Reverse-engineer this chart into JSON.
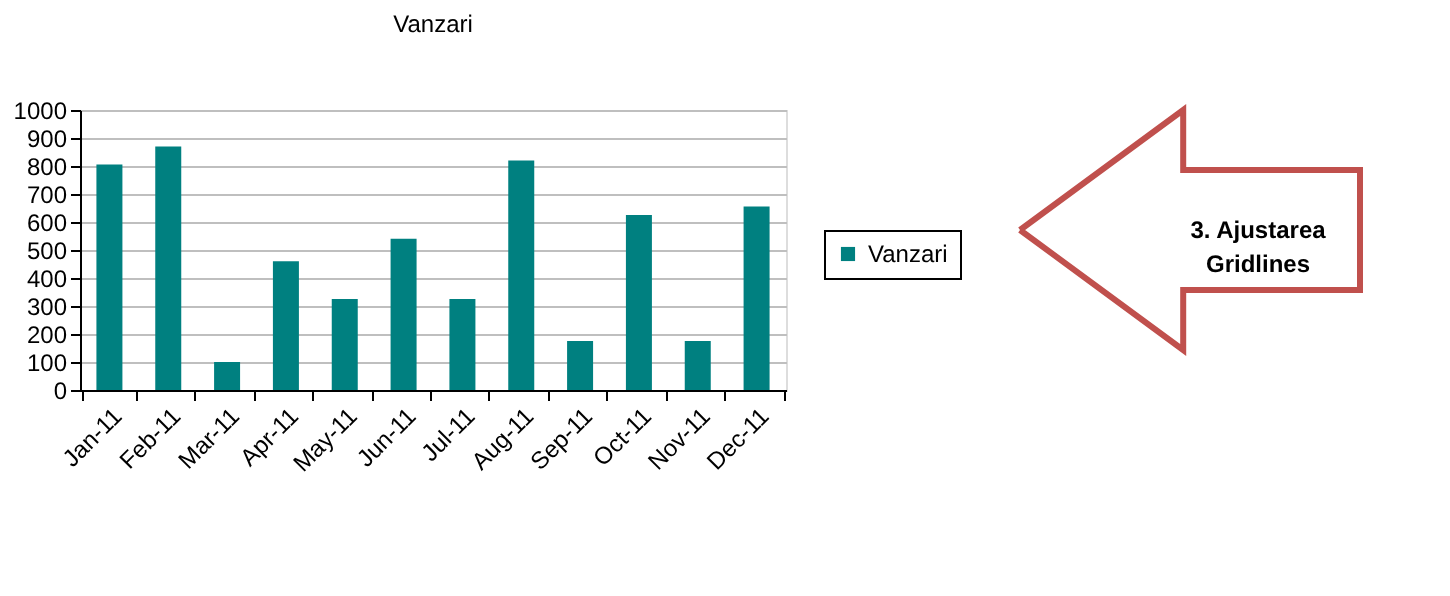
{
  "chart_data": {
    "type": "bar",
    "title": "Vanzari",
    "categories": [
      "Jan-11",
      "Feb-11",
      "Mar-11",
      "Apr-11",
      "May-11",
      "Jun-11",
      "Jul-11",
      "Aug-11",
      "Sep-11",
      "Oct-11",
      "Nov-11",
      "Dec-11"
    ],
    "series": [
      {
        "name": "Vanzari",
        "color": "#008080",
        "values": [
          805,
          870,
          100,
          460,
          325,
          540,
          325,
          820,
          175,
          625,
          175,
          655
        ]
      }
    ],
    "ylim": [
      0,
      1000
    ],
    "yticks": [
      0,
      100,
      200,
      300,
      400,
      500,
      600,
      700,
      800,
      900,
      1000
    ],
    "grid": "y",
    "legend": "right",
    "annotations": [
      "3. Ajustarea Gridlines"
    ]
  }
}
